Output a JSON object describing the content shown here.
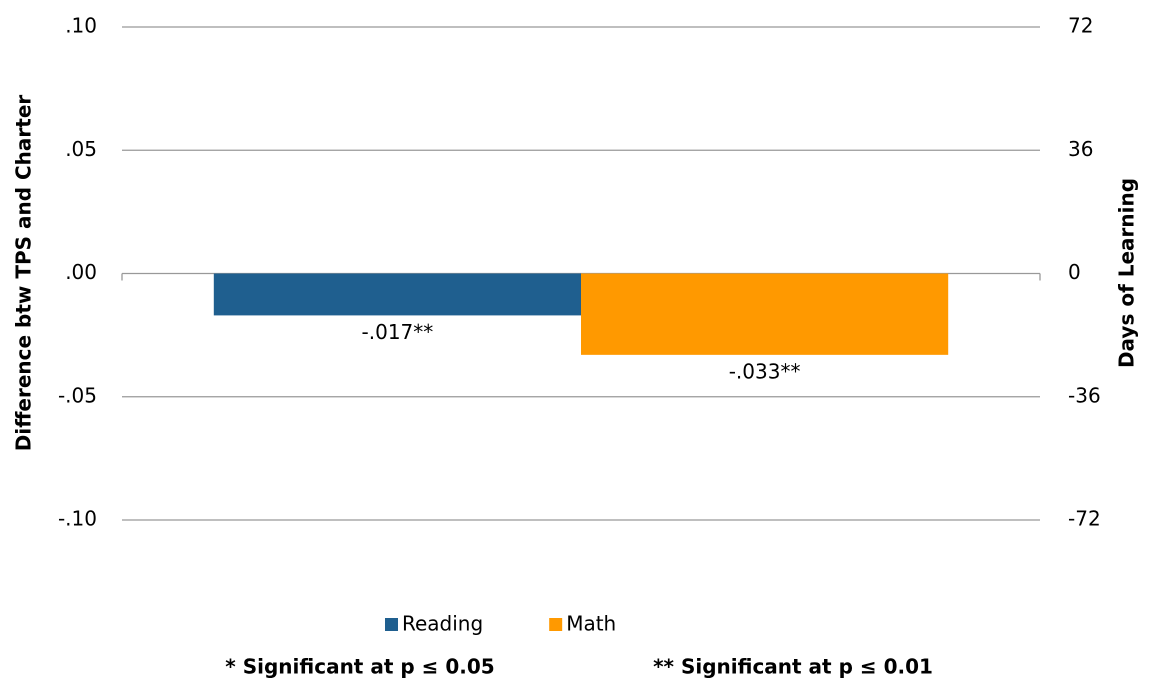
{
  "chart_data": {
    "type": "bar",
    "ylabel": "Difference btw TPS and Charter",
    "y2label": "Days of Learning",
    "categories": [
      null
    ],
    "series": [
      {
        "name": "Reading",
        "color": "#1f5f8f",
        "values": [
          -0.017
        ],
        "value_labels": [
          "-.017**"
        ]
      },
      {
        "name": "Math",
        "color": "#ff9900",
        "values": [
          -0.033
        ],
        "value_labels": [
          "-.033**"
        ]
      }
    ],
    "ylim": [
      -0.1,
      0.1
    ],
    "yticks": [
      {
        "value": 0.1,
        "label": ".10"
      },
      {
        "value": 0.05,
        "label": ".05"
      },
      {
        "value": 0,
        "label": ".00"
      },
      {
        "value": -0.05,
        "label": "-.05"
      },
      {
        "value": -0.1,
        "label": "-.10"
      }
    ],
    "y2lim": [
      -72,
      72
    ],
    "y2ticks": [
      72,
      36,
      0,
      -36,
      -72
    ],
    "grid": true,
    "legend": "bottom",
    "footnotes": [
      "* Significant at p ≤ 0.05",
      "** Significant at p ≤ 0.01"
    ]
  }
}
